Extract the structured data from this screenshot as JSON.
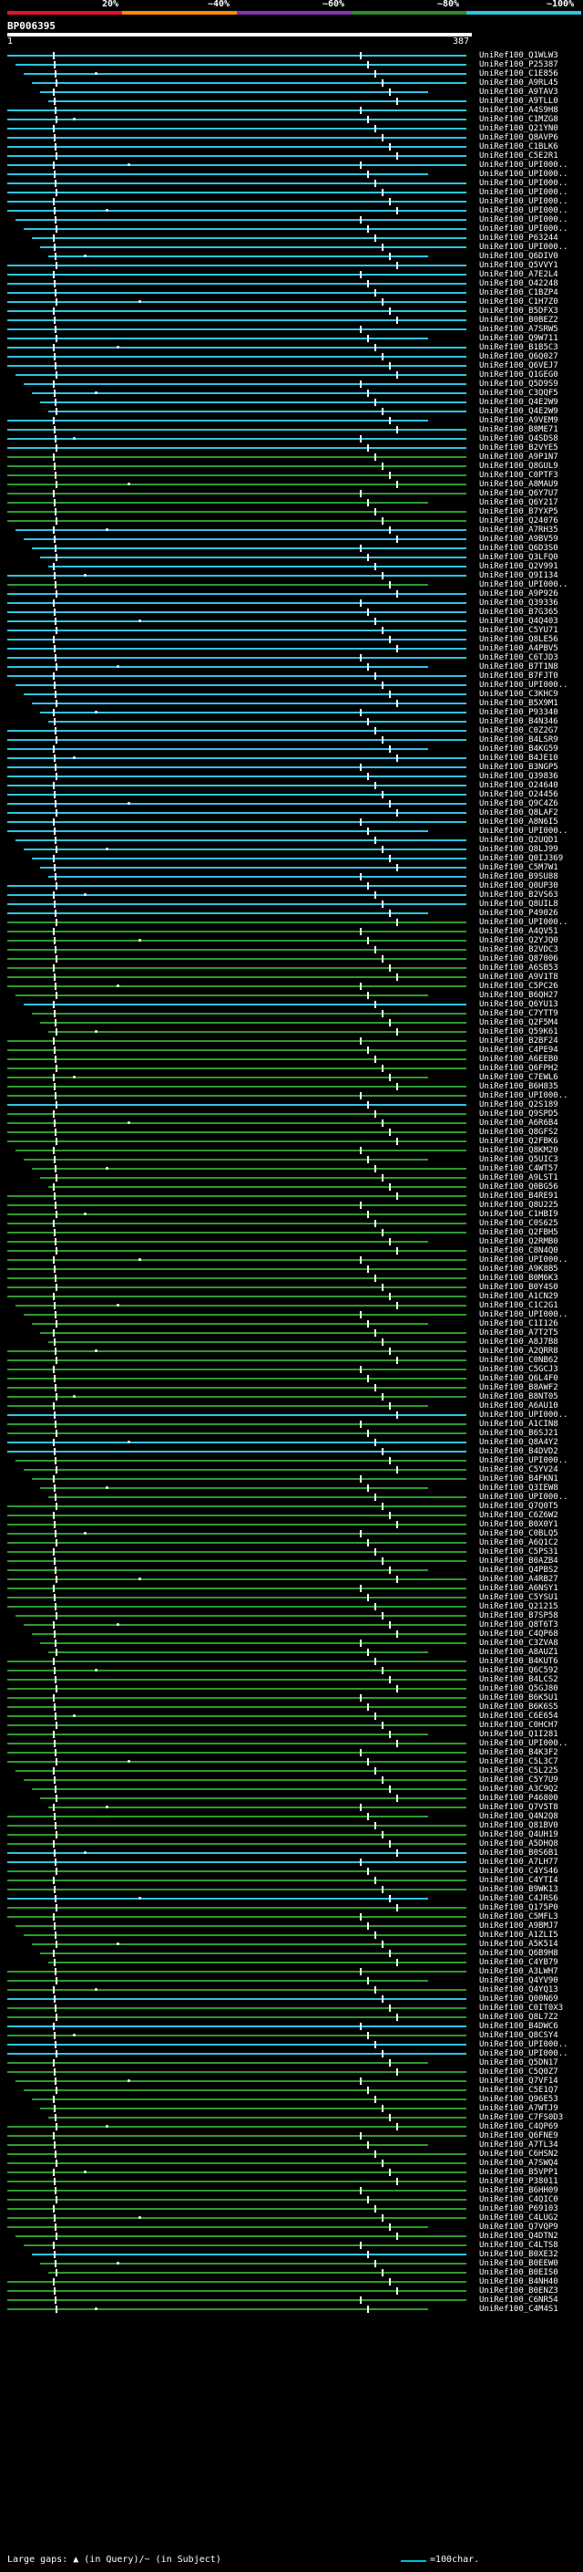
{
  "legend": {
    "labels": [
      "20%",
      "~40%",
      "~60%",
      "~80%",
      "~100%"
    ],
    "colors": [
      "#e8102a",
      "#ff8c00",
      "#8b2fb8",
      "#2e8b2e",
      "#2ec4e0"
    ]
  },
  "query": {
    "id": "BP006395",
    "start": "1",
    "end": "387"
  },
  "footer": {
    "left": "Large gaps: ▲ (in Query)/~ (in Subject)",
    "right": "=100char."
  },
  "hits": [
    {
      "label": "UniRef100_Q1WLW3",
      "color": "cyan"
    },
    {
      "label": "UniRef100_P25387",
      "color": "cyan"
    },
    {
      "label": "UniRef100_C1E856",
      "color": "cyan"
    },
    {
      "label": "UniRef100_A9RL45",
      "color": "cyan"
    },
    {
      "label": "UniRef100_A9TAV3",
      "color": "cyan"
    },
    {
      "label": "UniRef100_A9TLL0",
      "color": "cyan"
    },
    {
      "label": "UniRef100_A4S9H8",
      "color": "cyan"
    },
    {
      "label": "UniRef100_C1MZG8",
      "color": "cyan"
    },
    {
      "label": "UniRef100_Q21YN0",
      "color": "cyan"
    },
    {
      "label": "UniRef100_Q8AVP6",
      "color": "cyan"
    },
    {
      "label": "UniRef100_C1BLK6",
      "color": "cyan"
    },
    {
      "label": "UniRef100_C5E2R1",
      "color": "cyan"
    },
    {
      "label": "UniRef100_UPI000..",
      "color": "cyan"
    },
    {
      "label": "UniRef100_UPI000..",
      "color": "cyan"
    },
    {
      "label": "UniRef100_UPI000..",
      "color": "cyan"
    },
    {
      "label": "UniRef100_UPI000..",
      "color": "cyan"
    },
    {
      "label": "UniRef100_UPI000..",
      "color": "cyan"
    },
    {
      "label": "UniRef100_UPI000..",
      "color": "cyan"
    },
    {
      "label": "UniRef100_UPI000..",
      "color": "cyan"
    },
    {
      "label": "UniRef100_UPI000..",
      "color": "cyan"
    },
    {
      "label": "UniRef100_P63244",
      "color": "cyan"
    },
    {
      "label": "UniRef100_UPI000..",
      "color": "cyan"
    },
    {
      "label": "UniRef100_Q6DIV0",
      "color": "cyan"
    },
    {
      "label": "UniRef100_Q5VVY1",
      "color": "cyan"
    },
    {
      "label": "UniRef100_A7E2L4",
      "color": "cyan"
    },
    {
      "label": "UniRef100_O42248",
      "color": "cyan"
    },
    {
      "label": "UniRef100_C1BZP4",
      "color": "cyan"
    },
    {
      "label": "UniRef100_C1H7Z0",
      "color": "cyan"
    },
    {
      "label": "UniRef100_B5DFX3",
      "color": "cyan"
    },
    {
      "label": "UniRef100_B0BEZ2",
      "color": "cyan"
    },
    {
      "label": "UniRef100_A7SRW5",
      "color": "cyan"
    },
    {
      "label": "UniRef100_Q9W711",
      "color": "cyan"
    },
    {
      "label": "UniRef100_B1B5C3",
      "color": "cyan"
    },
    {
      "label": "UniRef100_Q6Q027",
      "color": "cyan"
    },
    {
      "label": "UniRef100_Q6VEJ7",
      "color": "cyan"
    },
    {
      "label": "UniRef100_Q1GEG0",
      "color": "cyan"
    },
    {
      "label": "UniRef100_Q5D9S9",
      "color": "cyan"
    },
    {
      "label": "UniRef100_C3QQF5",
      "color": "cyan"
    },
    {
      "label": "UniRef100_Q4E2W9",
      "color": "cyan"
    },
    {
      "label": "UniRef100_Q4E2W9",
      "color": "cyan"
    },
    {
      "label": "UniRef100_A9VEM9",
      "color": "cyan"
    },
    {
      "label": "UniRef100_B8ME71",
      "color": "cyan"
    },
    {
      "label": "UniRef100_Q4SDS8",
      "color": "cyan"
    },
    {
      "label": "UniRef100_B2VYE5",
      "color": "cyan"
    },
    {
      "label": "UniRef100_A9P1N7",
      "color": "green"
    },
    {
      "label": "UniRef100_Q8GUL9",
      "color": "green"
    },
    {
      "label": "UniRef100_C0PTF3",
      "color": "green"
    },
    {
      "label": "UniRef100_A8MAU9",
      "color": "green"
    },
    {
      "label": "UniRef100_Q6Y7U7",
      "color": "green"
    },
    {
      "label": "UniRef100_Q6Y217",
      "color": "green"
    },
    {
      "label": "UniRef100_B7YXP5",
      "color": "green"
    },
    {
      "label": "UniRef100_Q24076",
      "color": "green"
    },
    {
      "label": "UniRef100_A7RH35",
      "color": "cyan"
    },
    {
      "label": "UniRef100_A9BV59",
      "color": "cyan"
    },
    {
      "label": "UniRef100_Q6D3S0",
      "color": "cyan"
    },
    {
      "label": "UniRef100_Q3LFQ0",
      "color": "cyan"
    },
    {
      "label": "UniRef100_Q2V991",
      "color": "cyan"
    },
    {
      "label": "UniRef100_Q9I134",
      "color": "cyan"
    },
    {
      "label": "UniRef100_UPI000..",
      "color": "green"
    },
    {
      "label": "UniRef100_A9P926",
      "color": "cyan"
    },
    {
      "label": "UniRef100_Q39336",
      "color": "cyan"
    },
    {
      "label": "UniRef100_B7G365",
      "color": "cyan"
    },
    {
      "label": "UniRef100_Q4Q403",
      "color": "cyan"
    },
    {
      "label": "UniRef100_C5YU71",
      "color": "cyan"
    },
    {
      "label": "UniRef100_Q8LE56",
      "color": "cyan"
    },
    {
      "label": "UniRef100_A4PBV5",
      "color": "cyan"
    },
    {
      "label": "UniRef100_C6TJD3",
      "color": "cyan"
    },
    {
      "label": "UniRef100_B7T1N8",
      "color": "cyan"
    },
    {
      "label": "UniRef100_B7FJT0",
      "color": "cyan"
    },
    {
      "label": "UniRef100_UPI000..",
      "color": "cyan"
    },
    {
      "label": "UniRef100_C3KHC9",
      "color": "cyan"
    },
    {
      "label": "UniRef100_B5X9M1",
      "color": "cyan"
    },
    {
      "label": "UniRef100_P93340",
      "color": "cyan"
    },
    {
      "label": "UniRef100_B4N346",
      "color": "cyan"
    },
    {
      "label": "UniRef100_C0Z2G7",
      "color": "cyan"
    },
    {
      "label": "UniRef100_B4LSR9",
      "color": "cyan"
    },
    {
      "label": "UniRef100_B4KG59",
      "color": "cyan"
    },
    {
      "label": "UniRef100_B4JE10",
      "color": "cyan"
    },
    {
      "label": "UniRef100_B3NGP5",
      "color": "cyan"
    },
    {
      "label": "UniRef100_Q39836",
      "color": "cyan"
    },
    {
      "label": "UniRef100_O24640",
      "color": "cyan"
    },
    {
      "label": "UniRef100_O24456",
      "color": "cyan"
    },
    {
      "label": "UniRef100_Q9C4Z6",
      "color": "cyan"
    },
    {
      "label": "UniRef100_Q8LAF2",
      "color": "cyan"
    },
    {
      "label": "UniRef100_A8N6I5",
      "color": "cyan"
    },
    {
      "label": "UniRef100_UPI000..",
      "color": "cyan"
    },
    {
      "label": "UniRef100_Q2UQD1",
      "color": "cyan"
    },
    {
      "label": "UniRef100_Q8LJ99",
      "color": "cyan"
    },
    {
      "label": "UniRef100_Q0IJ369",
      "color": "cyan"
    },
    {
      "label": "UniRef100_C5M7W1",
      "color": "cyan"
    },
    {
      "label": "UniRef100_B9SU88",
      "color": "cyan"
    },
    {
      "label": "UniRef100_Q0UP30",
      "color": "cyan"
    },
    {
      "label": "UniRef100_B2VS63",
      "color": "cyan"
    },
    {
      "label": "UniRef100_Q8UIL8",
      "color": "cyan"
    },
    {
      "label": "UniRef100_P49026",
      "color": "cyan"
    },
    {
      "label": "UniRef100_UPI000..",
      "color": "green"
    },
    {
      "label": "UniRef100_A4QV51",
      "color": "green"
    },
    {
      "label": "UniRef100_Q2YJQ0",
      "color": "green"
    },
    {
      "label": "UniRef100_B2VDC3",
      "color": "green"
    },
    {
      "label": "UniRef100_Q87006",
      "color": "green"
    },
    {
      "label": "UniRef100_A6SB53",
      "color": "green"
    },
    {
      "label": "UniRef100_A9V1T8",
      "color": "green"
    },
    {
      "label": "UniRef100_C5PC26",
      "color": "green"
    },
    {
      "label": "UniRef100_B6QH27",
      "color": "green"
    },
    {
      "label": "UniRef100_Q6YU13",
      "color": "cyan"
    },
    {
      "label": "UniRef100_C7YTT9",
      "color": "green"
    },
    {
      "label": "UniRef100_Q2F5M4",
      "color": "green"
    },
    {
      "label": "UniRef100_Q59K61",
      "color": "green"
    },
    {
      "label": "UniRef100_B2BF24",
      "color": "green"
    },
    {
      "label": "UniRef100_C4PE94",
      "color": "green"
    },
    {
      "label": "UniRef100_A6EEB0",
      "color": "green"
    },
    {
      "label": "UniRef100_Q6FPH2",
      "color": "green"
    },
    {
      "label": "UniRef100_C7EWL6",
      "color": "green"
    },
    {
      "label": "UniRef100_B6H835",
      "color": "green"
    },
    {
      "label": "UniRef100_UPI000..",
      "color": "green"
    },
    {
      "label": "UniRef100_Q2S189",
      "color": "cyan"
    },
    {
      "label": "UniRef100_Q9SPD5",
      "color": "green"
    },
    {
      "label": "UniRef100_A6R6B4",
      "color": "green"
    },
    {
      "label": "UniRef100_Q8GFS2",
      "color": "green"
    },
    {
      "label": "UniRef100_Q2FBK6",
      "color": "green"
    },
    {
      "label": "UniRef100_Q8KM20",
      "color": "green"
    },
    {
      "label": "UniRef100_Q5UIC3",
      "color": "green"
    },
    {
      "label": "UniRef100_C4WT57",
      "color": "green"
    },
    {
      "label": "UniRef100_A9LST1",
      "color": "green"
    },
    {
      "label": "UniRef100_Q0BG56",
      "color": "green"
    },
    {
      "label": "UniRef100_B4RE91",
      "color": "green"
    },
    {
      "label": "UniRef100_Q8U225",
      "color": "green"
    },
    {
      "label": "UniRef100_C1HBI9",
      "color": "green"
    },
    {
      "label": "UniRef100_C0S625",
      "color": "green"
    },
    {
      "label": "UniRef100_Q2FBH5",
      "color": "green"
    },
    {
      "label": "UniRef100_Q2RMB0",
      "color": "green"
    },
    {
      "label": "UniRef100_C8N4Q0",
      "color": "green"
    },
    {
      "label": "UniRef100_UPI000..",
      "color": "green"
    },
    {
      "label": "UniRef100_A9K8B5",
      "color": "green"
    },
    {
      "label": "UniRef100_B0M6K3",
      "color": "green"
    },
    {
      "label": "UniRef100_B0Y4S0",
      "color": "green"
    },
    {
      "label": "UniRef100_A1CN29",
      "color": "green"
    },
    {
      "label": "UniRef100_C1C2G1",
      "color": "green"
    },
    {
      "label": "UniRef100_UPI000..",
      "color": "green"
    },
    {
      "label": "UniRef100_C1I126",
      "color": "green"
    },
    {
      "label": "UniRef100_A7T2T5",
      "color": "green"
    },
    {
      "label": "UniRef100_A8J7B8",
      "color": "green"
    },
    {
      "label": "UniRef100_A2QRR8",
      "color": "green"
    },
    {
      "label": "UniRef100_C0NB62",
      "color": "green"
    },
    {
      "label": "UniRef100_C5GCJ3",
      "color": "green"
    },
    {
      "label": "UniRef100_Q6L4F0",
      "color": "green"
    },
    {
      "label": "UniRef100_B8AWF2",
      "color": "green"
    },
    {
      "label": "UniRef100_B8NT05",
      "color": "green"
    },
    {
      "label": "UniRef100_A6AU10",
      "color": "green"
    },
    {
      "label": "UniRef100_UPI000..",
      "color": "cyan"
    },
    {
      "label": "UniRef100_A1CIN8",
      "color": "green"
    },
    {
      "label": "UniRef100_B6SJ21",
      "color": "green"
    },
    {
      "label": "UniRef100_Q8A4Y2",
      "color": "cyan"
    },
    {
      "label": "UniRef100_B4DVD2",
      "color": "cyan"
    },
    {
      "label": "UniRef100_UPI000..",
      "color": "green"
    },
    {
      "label": "UniRef100_C5YV24",
      "color": "green"
    },
    {
      "label": "UniRef100_B4FKN1",
      "color": "green"
    },
    {
      "label": "UniRef100_Q3IEW8",
      "color": "green"
    },
    {
      "label": "UniRef100_UPI000..",
      "color": "green"
    },
    {
      "label": "UniRef100_Q7Q0T5",
      "color": "green"
    },
    {
      "label": "UniRef100_C6Z6W2",
      "color": "green"
    },
    {
      "label": "UniRef100_B0X0Y1",
      "color": "green"
    },
    {
      "label": "UniRef100_C0BLQ5",
      "color": "green"
    },
    {
      "label": "UniRef100_A6Q1C2",
      "color": "green"
    },
    {
      "label": "UniRef100_C5PS31",
      "color": "green"
    },
    {
      "label": "UniRef100_B0AZB4",
      "color": "green"
    },
    {
      "label": "UniRef100_Q4PBS2",
      "color": "green"
    },
    {
      "label": "UniRef100_A4RB27",
      "color": "green"
    },
    {
      "label": "UniRef100_A6NSY1",
      "color": "green"
    },
    {
      "label": "UniRef100_C5YSU1",
      "color": "green"
    },
    {
      "label": "UniRef100_Q21215",
      "color": "green"
    },
    {
      "label": "UniRef100_B7SP58",
      "color": "green"
    },
    {
      "label": "UniRef100_Q8T6T3",
      "color": "green"
    },
    {
      "label": "UniRef100_C4QP68",
      "color": "green"
    },
    {
      "label": "UniRef100_C3ZVA8",
      "color": "green"
    },
    {
      "label": "UniRef100_A8AUZ1",
      "color": "green"
    },
    {
      "label": "UniRef100_B4KUT6",
      "color": "green"
    },
    {
      "label": "UniRef100_Q6C592",
      "color": "green"
    },
    {
      "label": "UniRef100_B4LCS2",
      "color": "green"
    },
    {
      "label": "UniRef100_Q5GJ80",
      "color": "green"
    },
    {
      "label": "UniRef100_B6K5U1",
      "color": "green"
    },
    {
      "label": "UniRef100_B6K6S5",
      "color": "green"
    },
    {
      "label": "UniRef100_C6E654",
      "color": "green"
    },
    {
      "label": "UniRef100_C0HCH7",
      "color": "green"
    },
    {
      "label": "UniRef100_Q1I281",
      "color": "green"
    },
    {
      "label": "UniRef100_UPI000..",
      "color": "green"
    },
    {
      "label": "UniRef100_B4K3F2",
      "color": "green"
    },
    {
      "label": "UniRef100_C5L3C7",
      "color": "green"
    },
    {
      "label": "UniRef100_C5L225",
      "color": "green"
    },
    {
      "label": "UniRef100_C5Y7U9",
      "color": "green"
    },
    {
      "label": "UniRef100_A3C9Q2",
      "color": "green"
    },
    {
      "label": "UniRef100_P46800",
      "color": "green"
    },
    {
      "label": "UniRef100_Q7V5T8",
      "color": "green"
    },
    {
      "label": "UniRef100_Q4N2Q8",
      "color": "green"
    },
    {
      "label": "UniRef100_Q81BV0",
      "color": "green"
    },
    {
      "label": "UniRef100_Q4UH19",
      "color": "green"
    },
    {
      "label": "UniRef100_A5DHQ8",
      "color": "green"
    },
    {
      "label": "UniRef100_B0S6B1",
      "color": "cyan"
    },
    {
      "label": "UniRef100_A7LH77",
      "color": "cyan"
    },
    {
      "label": "UniRef100_C4YS46",
      "color": "green"
    },
    {
      "label": "UniRef100_C4YTI4",
      "color": "green"
    },
    {
      "label": "UniRef100_B9WK13",
      "color": "green"
    },
    {
      "label": "UniRef100_C4JRS6",
      "color": "cyan"
    },
    {
      "label": "UniRef100_Q175P0",
      "color": "green"
    },
    {
      "label": "UniRef100_C5MFL3",
      "color": "green"
    },
    {
      "label": "UniRef100_A9BMJ7",
      "color": "green"
    },
    {
      "label": "UniRef100_A1ZLI5",
      "color": "green"
    },
    {
      "label": "UniRef100_A5K514",
      "color": "green"
    },
    {
      "label": "UniRef100_Q6B9H8",
      "color": "green"
    },
    {
      "label": "UniRef100_C4YB79",
      "color": "green"
    },
    {
      "label": "UniRef100_A3LWH7",
      "color": "green"
    },
    {
      "label": "UniRef100_Q4YV90",
      "color": "green"
    },
    {
      "label": "UniRef100_Q4YQ13",
      "color": "green"
    },
    {
      "label": "UniRef100_Q00N69",
      "color": "cyan"
    },
    {
      "label": "UniRef100_C0IT0X3",
      "color": "green"
    },
    {
      "label": "UniRef100_Q8L7Z2",
      "color": "green"
    },
    {
      "label": "UniRef100_B4DWC6",
      "color": "cyan"
    },
    {
      "label": "UniRef100_Q8CSY4",
      "color": "green"
    },
    {
      "label": "UniRef100_UPI000..",
      "color": "cyan"
    },
    {
      "label": "UniRef100_UPI000..",
      "color": "cyan"
    },
    {
      "label": "UniRef100_Q5DN17",
      "color": "green"
    },
    {
      "label": "UniRef100_C5Q0Z7",
      "color": "green"
    },
    {
      "label": "UniRef100_Q7VF14",
      "color": "green"
    },
    {
      "label": "UniRef100_C5E1Q7",
      "color": "green"
    },
    {
      "label": "UniRef100_Q96E53",
      "color": "green"
    },
    {
      "label": "UniRef100_A7WTJ9",
      "color": "green"
    },
    {
      "label": "UniRef100_C7FS0D3",
      "color": "green"
    },
    {
      "label": "UniRef100_C4QP69",
      "color": "green"
    },
    {
      "label": "UniRef100_Q6FNE9",
      "color": "green"
    },
    {
      "label": "UniRef100_A7TL34",
      "color": "green"
    },
    {
      "label": "UniRef100_C6HSN2",
      "color": "green"
    },
    {
      "label": "UniRef100_A7SWQ4",
      "color": "green"
    },
    {
      "label": "UniRef100_B5VPP1",
      "color": "green"
    },
    {
      "label": "UniRef100_P38011",
      "color": "green"
    },
    {
      "label": "UniRef100_B6HH09",
      "color": "green"
    },
    {
      "label": "UniRef100_C4QIC0",
      "color": "green"
    },
    {
      "label": "UniRef100_P69103",
      "color": "green"
    },
    {
      "label": "UniRef100_C4LUG2",
      "color": "green"
    },
    {
      "label": "UniRef100_Q7VQP9",
      "color": "green"
    },
    {
      "label": "UniRef100_Q4DTN2",
      "color": "green"
    },
    {
      "label": "UniRef100_C4LTS8",
      "color": "green"
    },
    {
      "label": "UniRef100_B0XE32",
      "color": "cyan"
    },
    {
      "label": "UniRef100_B0EEW0",
      "color": "green"
    },
    {
      "label": "UniRef100_B0EIS0",
      "color": "green"
    },
    {
      "label": "UniRef100_B4NH40",
      "color": "green"
    },
    {
      "label": "UniRef100_B0ENZ3",
      "color": "green"
    },
    {
      "label": "UniRef100_C6NR54",
      "color": "green"
    },
    {
      "label": "UniRef100_C4M4S1",
      "color": "green"
    }
  ]
}
